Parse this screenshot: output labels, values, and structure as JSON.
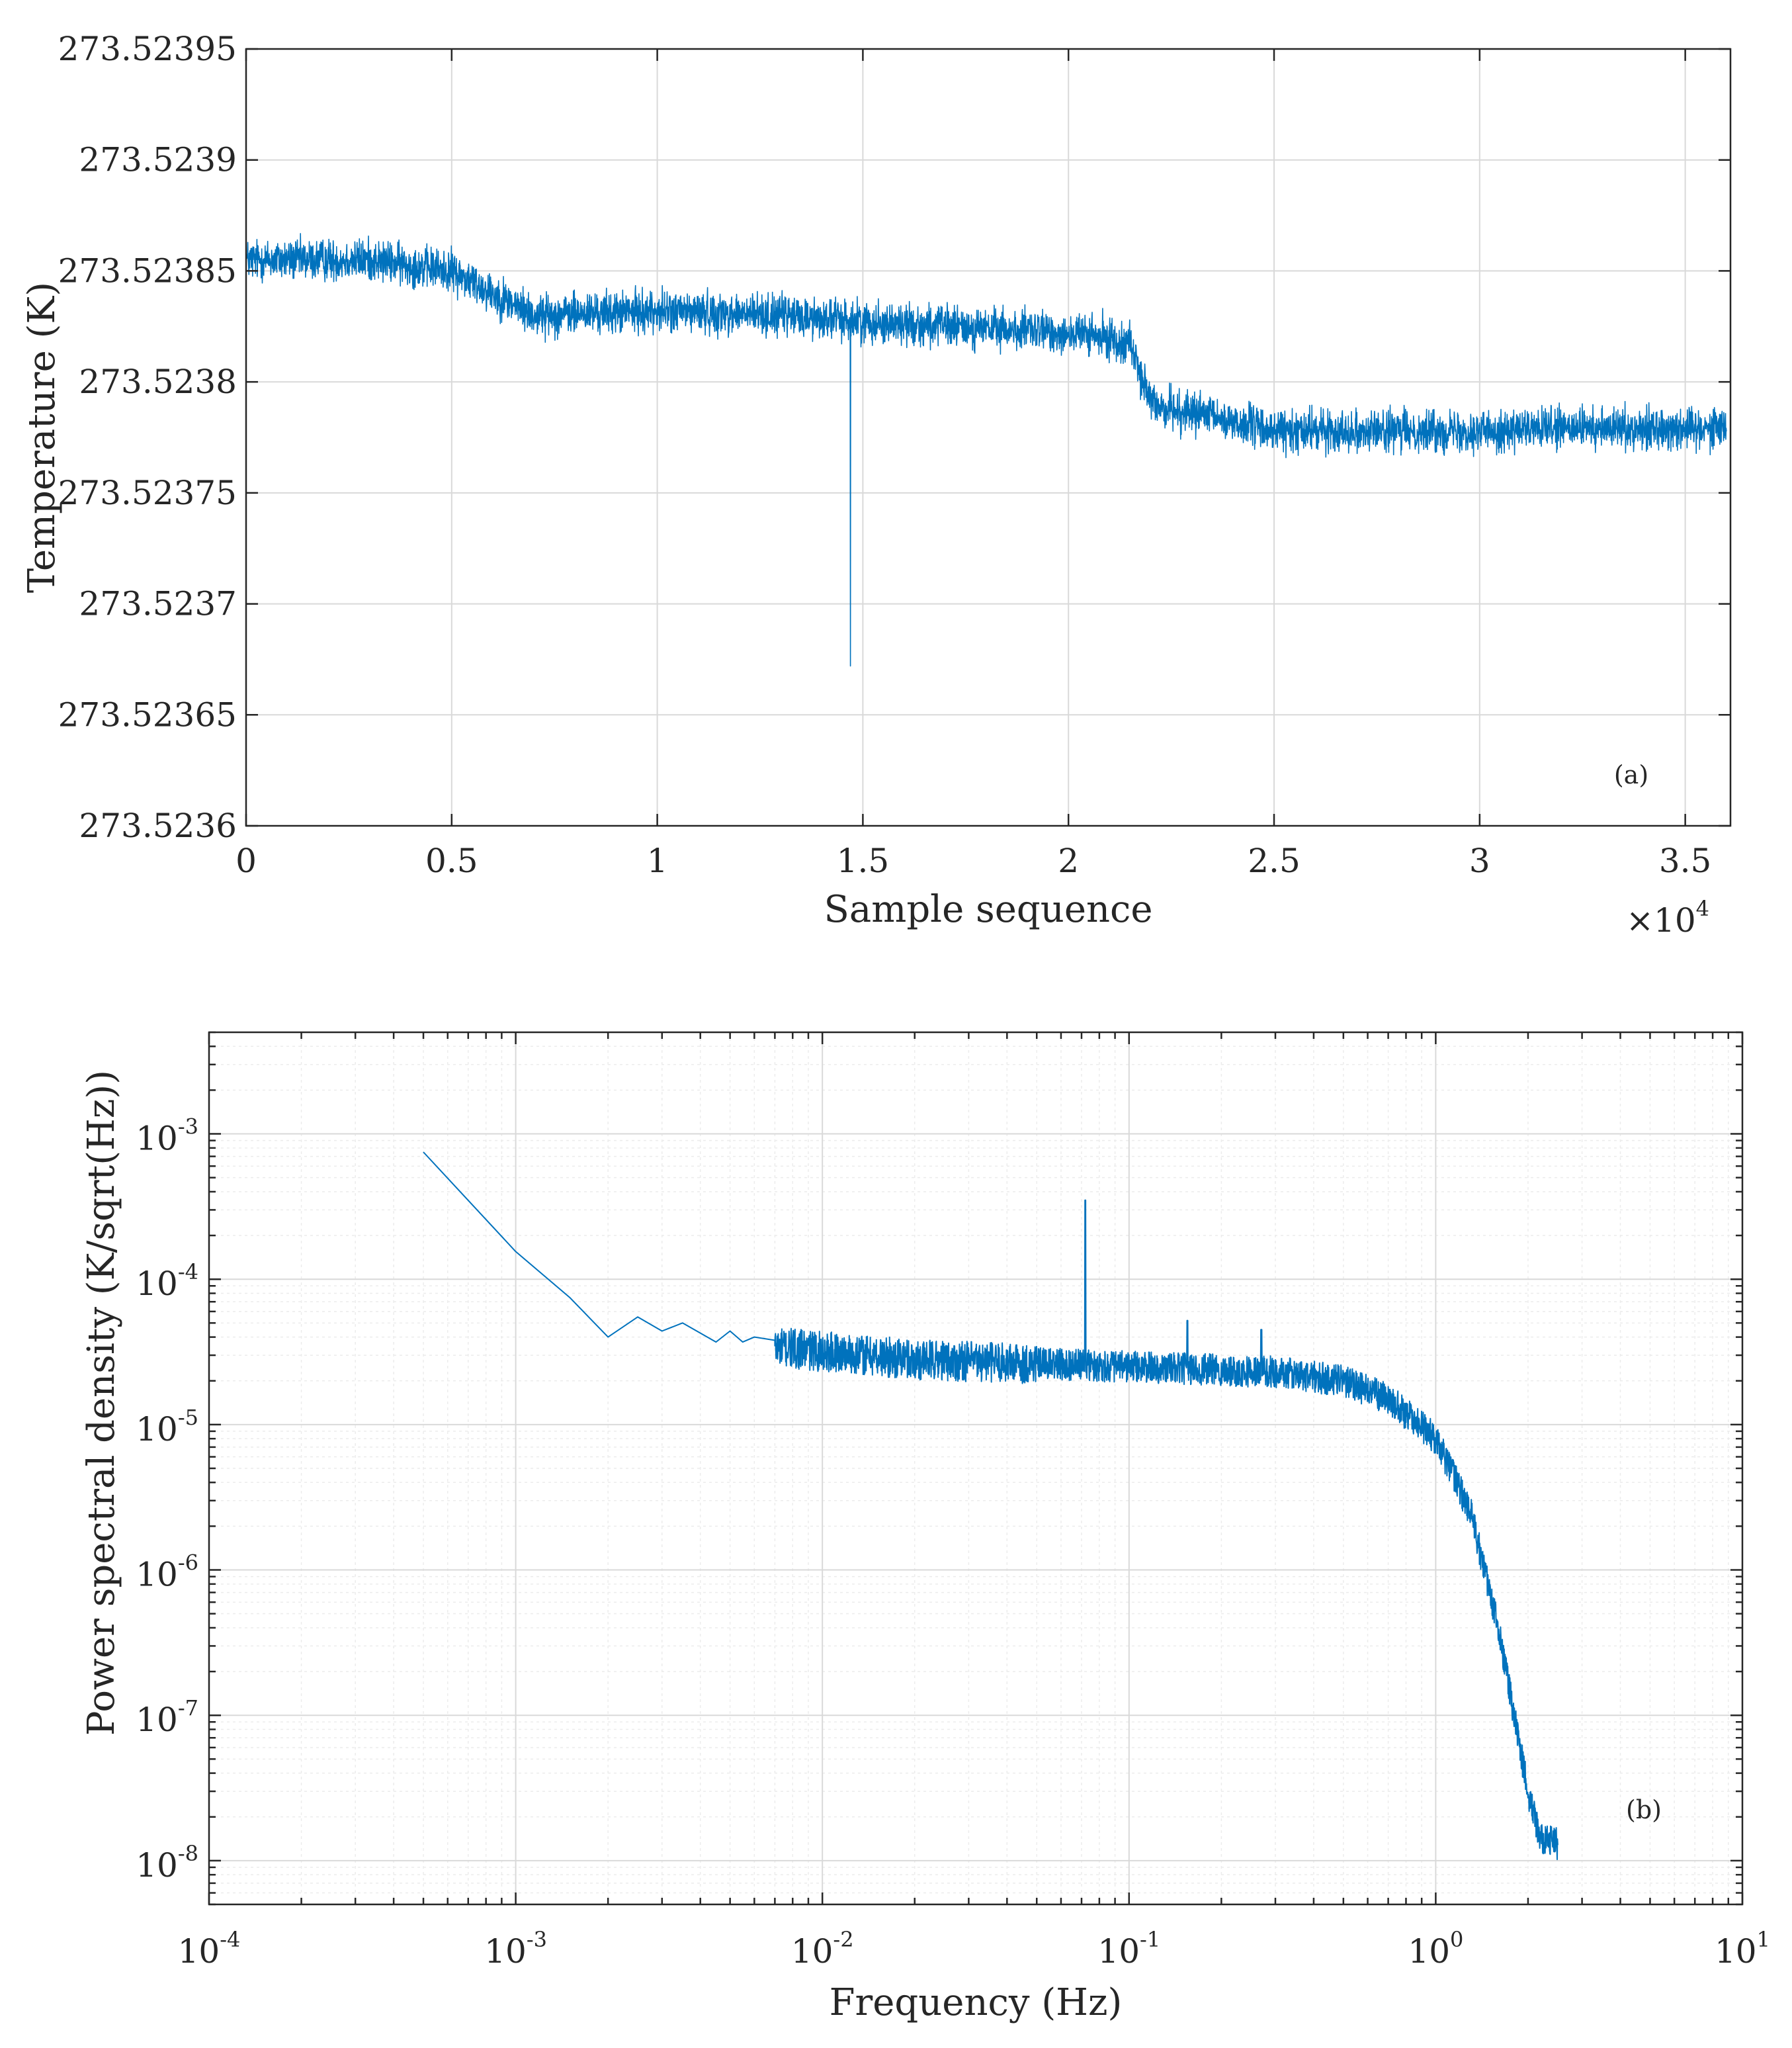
{
  "chart_data": [
    {
      "id": "a",
      "type": "line",
      "panel_label": "(a)",
      "xlabel": "Sample sequence",
      "ylabel": "Temperature (K)",
      "x_multiplier": "×10",
      "x_multiplier_exp": "4",
      "xlim": [
        0,
        36100
      ],
      "ylim": [
        273.5236,
        273.52395
      ],
      "grid": true,
      "x_ticks": [
        0,
        5000,
        10000,
        15000,
        20000,
        25000,
        30000,
        35000
      ],
      "x_tick_labels": [
        "0",
        "0.5",
        "1",
        "1.5",
        "2",
        "2.5",
        "3",
        "3.5"
      ],
      "y_ticks": [
        273.5236,
        273.52365,
        273.5237,
        273.52375,
        273.5238,
        273.52385,
        273.5239,
        273.52395
      ],
      "y_tick_labels": [
        "273.5236",
        "273.52365",
        "273.5237",
        "273.52375",
        "273.5238",
        "273.52385",
        "273.5239",
        "273.52395"
      ],
      "series": [
        {
          "name": "temperature",
          "color": "#0072BD",
          "mean_profile": [
            [
              0,
              273.523855
            ],
            [
              3000,
              273.523855
            ],
            [
              5000,
              273.52385
            ],
            [
              7000,
              273.52383
            ],
            [
              10000,
              273.523832
            ],
            [
              13000,
              273.52383
            ],
            [
              16000,
              273.523826
            ],
            [
              20000,
              273.523822
            ],
            [
              21500,
              273.523818
            ],
            [
              22000,
              273.52379
            ],
            [
              25000,
              273.523778
            ],
            [
              30000,
              273.523778
            ],
            [
              36000,
              273.52378
            ]
          ],
          "noise_half_width": 1.2e-05,
          "spike": {
            "x": 14700,
            "y": 273.523672
          }
        }
      ]
    },
    {
      "id": "b",
      "type": "line",
      "panel_label": "(b)",
      "xlabel": "Frequency (Hz)",
      "ylabel": "Power spectral density (K/sqrt(Hz))",
      "x_scale": "log",
      "y_scale": "log",
      "xlim": [
        0.0001,
        10
      ],
      "ylim": [
        5e-09,
        0.005
      ],
      "grid": true,
      "x_ticks": [
        0.0001,
        0.001,
        0.01,
        0.1,
        1,
        10
      ],
      "x_tick_labels": [
        {
          "base": "10",
          "exp": "-4"
        },
        {
          "base": "10",
          "exp": "-3"
        },
        {
          "base": "10",
          "exp": "-2"
        },
        {
          "base": "10",
          "exp": "-1"
        },
        {
          "base": "10",
          "exp": "0"
        },
        {
          "base": "10",
          "exp": "1"
        }
      ],
      "y_ticks": [
        1e-08,
        1e-07,
        1e-06,
        1e-05,
        0.0001,
        0.001
      ],
      "y_tick_labels": [
        {
          "base": "10",
          "exp": "-8"
        },
        {
          "base": "10",
          "exp": "-7"
        },
        {
          "base": "10",
          "exp": "-6"
        },
        {
          "base": "10",
          "exp": "-5"
        },
        {
          "base": "10",
          "exp": "-4"
        },
        {
          "base": "10",
          "exp": "-3"
        }
      ],
      "series": [
        {
          "name": "psd",
          "color": "#0072BD",
          "points": [
            [
              0.0005,
              0.00075
            ],
            [
              0.001,
              0.000155
            ],
            [
              0.0015,
              7.5e-05
            ],
            [
              0.002,
              4e-05
            ],
            [
              0.0025,
              5.5e-05
            ],
            [
              0.003,
              4.4e-05
            ],
            [
              0.0035,
              5e-05
            ],
            [
              0.0045,
              3.7e-05
            ],
            [
              0.005,
              4.4e-05
            ],
            [
              0.0055,
              3.7e-05
            ],
            [
              0.006,
              4e-05
            ],
            [
              0.007,
              3.8e-05
            ]
          ],
          "floor_profile": [
            [
              0.007,
              3.4e-05
            ],
            [
              0.02,
              2.8e-05
            ],
            [
              0.1,
              2.5e-05
            ],
            [
              0.3,
              2.3e-05
            ],
            [
              0.5,
              2e-05
            ],
            [
              0.7,
              1.5e-05
            ],
            [
              1.0,
              8e-06
            ],
            [
              1.3,
              2.5e-06
            ],
            [
              1.6,
              4e-07
            ],
            [
              1.8,
              1e-07
            ],
            [
              2.0,
              3e-08
            ],
            [
              2.2,
              1.4e-08
            ],
            [
              2.5,
              1.3e-08
            ]
          ],
          "peaks": [
            {
              "x": 0.072,
              "y": 0.00035
            },
            {
              "x": 0.155,
              "y": 5.2e-05
            },
            {
              "x": 0.27,
              "y": 4.5e-05
            }
          ]
        }
      ]
    }
  ]
}
